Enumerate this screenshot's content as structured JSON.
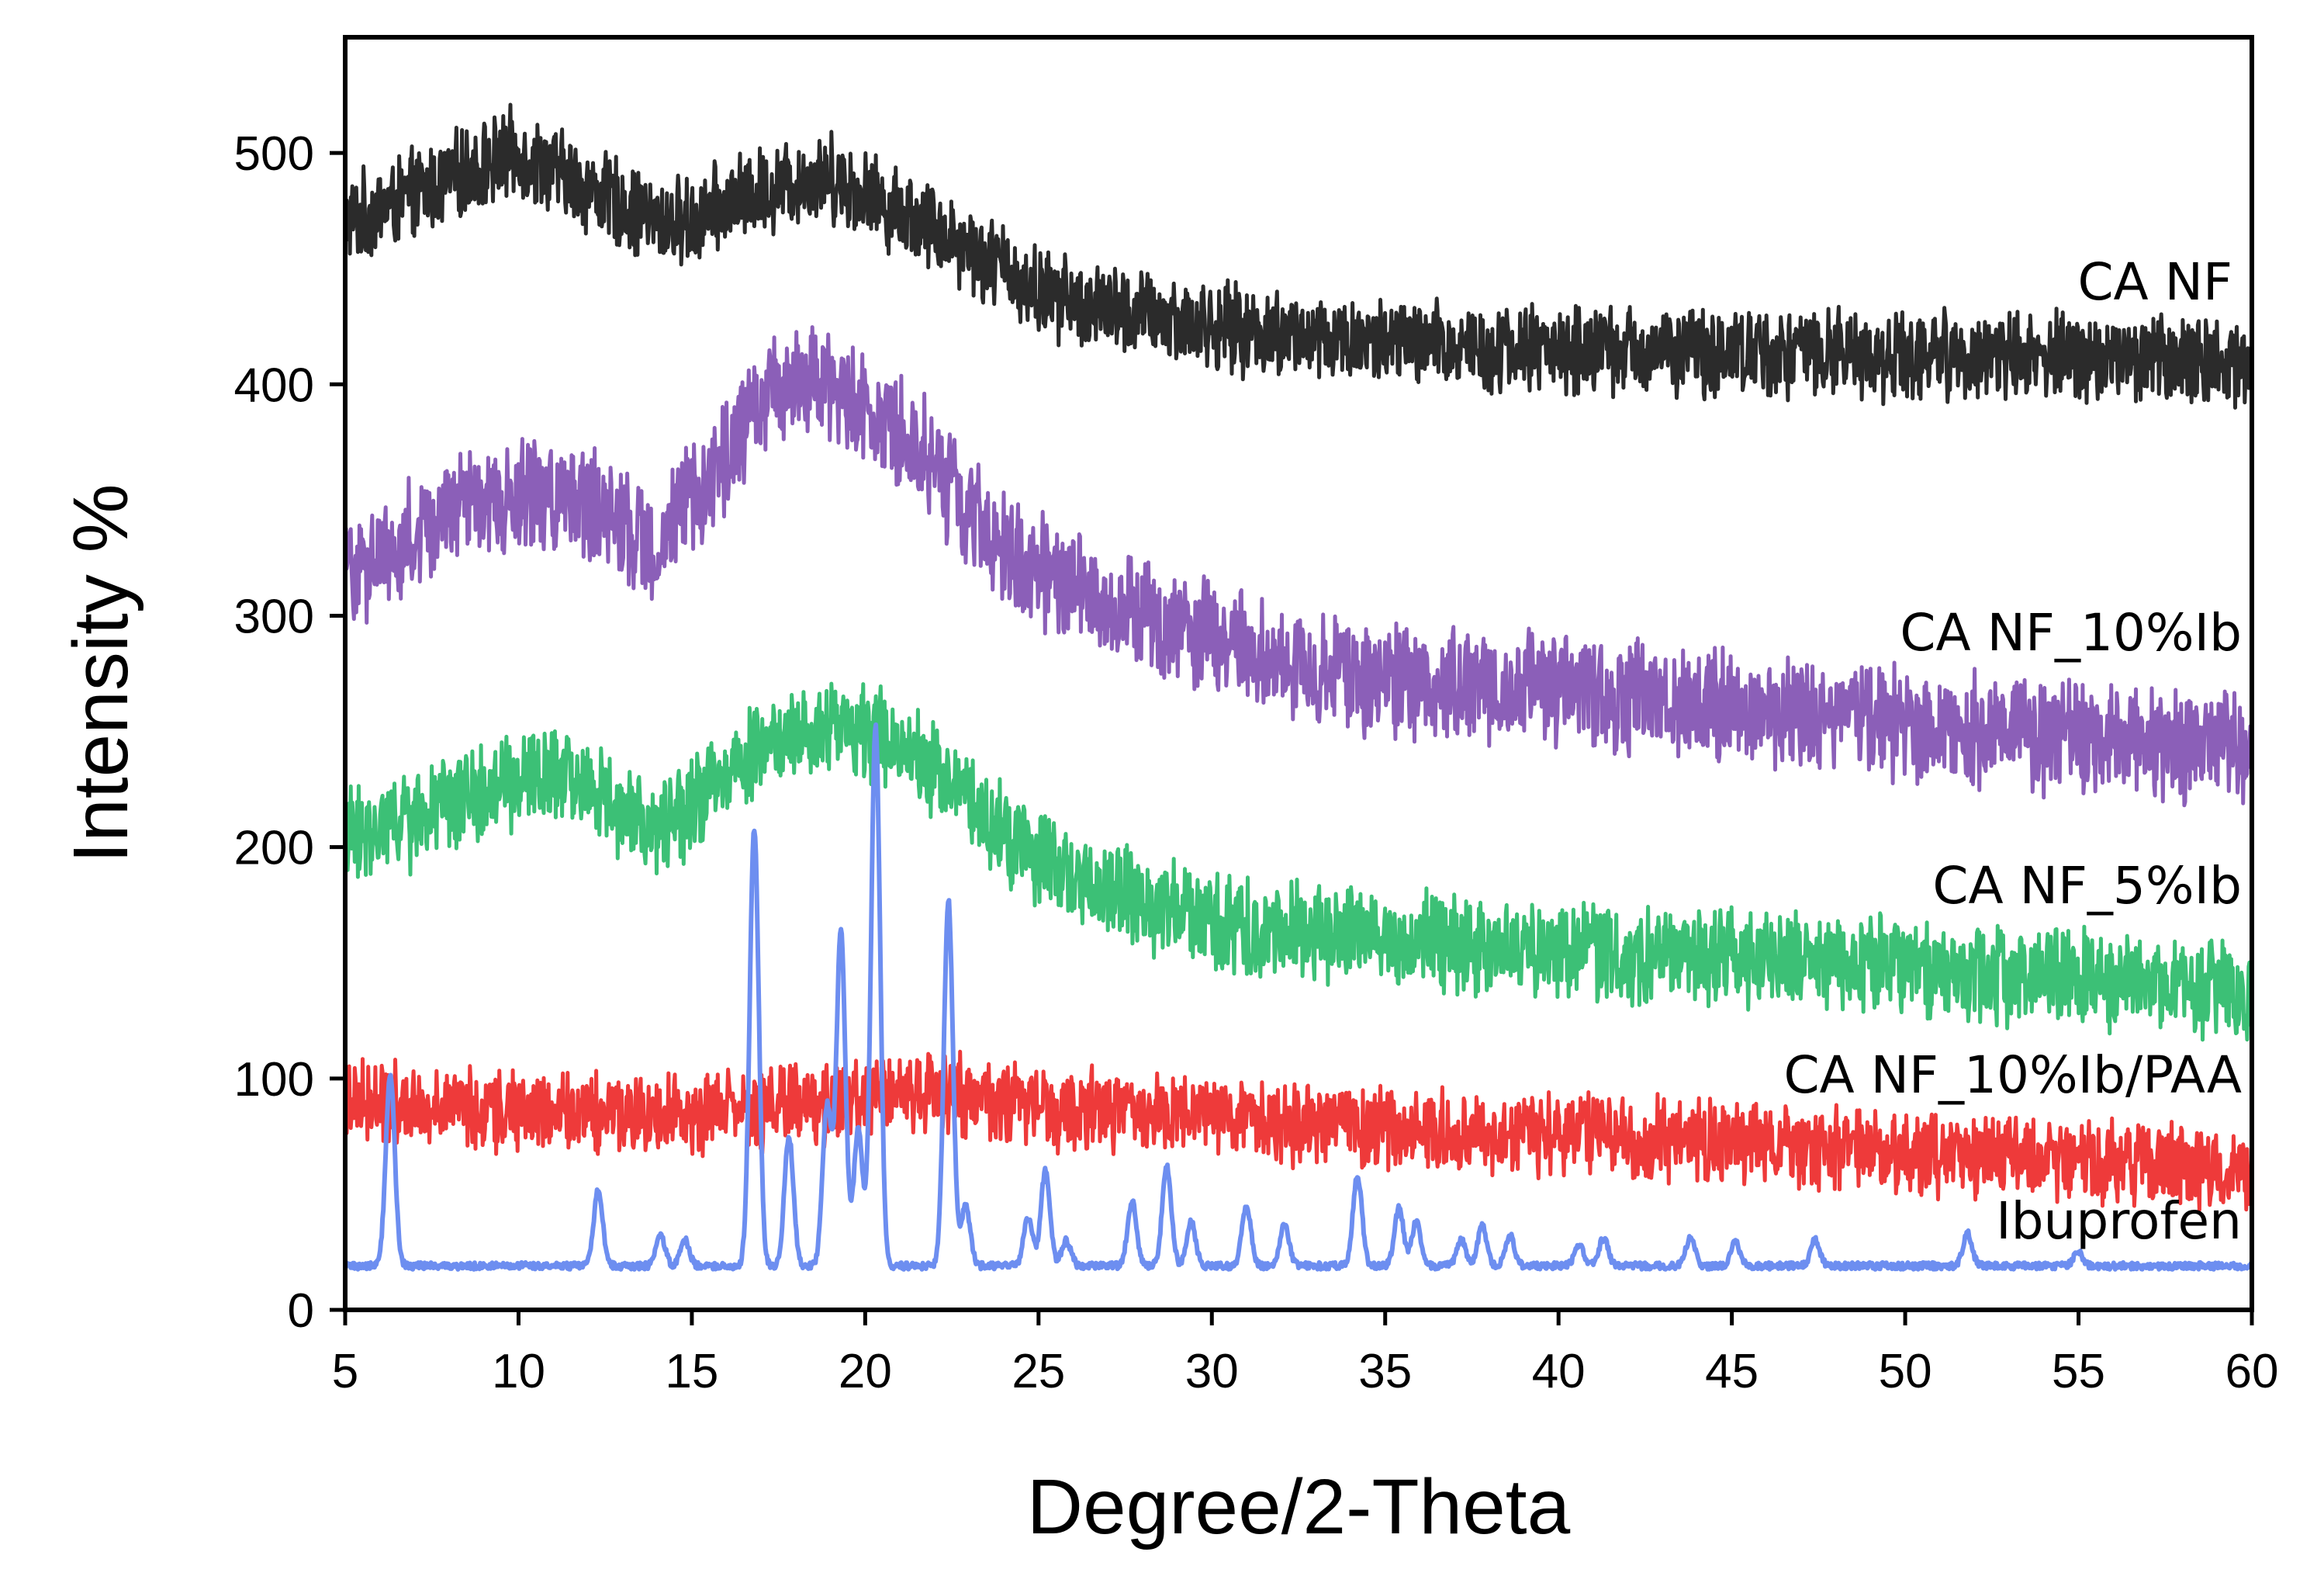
{
  "chart_data": {
    "type": "line",
    "title": "",
    "xlabel": "Degree/2-Theta",
    "ylabel": "Intensity %",
    "xlim": [
      5,
      60
    ],
    "ylim": [
      0,
      550
    ],
    "x_ticks": [
      5,
      10,
      15,
      20,
      25,
      30,
      35,
      40,
      45,
      50,
      55,
      60
    ],
    "y_ticks": [
      0,
      100,
      200,
      300,
      400,
      500
    ],
    "grid": false,
    "legend": "none (labels placed at right end of each curve)",
    "series": [
      {
        "name": "CA NF",
        "color": "#2b2b2b",
        "noise_amplitude": 22,
        "x": [
          5,
          7,
          9,
          10,
          12,
          14,
          15,
          16,
          18,
          19,
          20,
          22,
          24,
          25,
          27,
          30,
          33,
          36,
          40,
          45,
          50,
          55,
          60
        ],
        "y": [
          470,
          482,
          495,
          500,
          485,
          470,
          470,
          478,
          488,
          490,
          482,
          468,
          450,
          440,
          432,
          425,
          420,
          417,
          415,
          414,
          413,
          412,
          410
        ]
      },
      {
        "name": "CA NF_10%Ib",
        "color": "#8b5fb8",
        "noise_amplitude": 28,
        "x": [
          5,
          6,
          8,
          10,
          12,
          13,
          14,
          16,
          17,
          18,
          19,
          20,
          21,
          22,
          23,
          25,
          27,
          30,
          32,
          35,
          40,
          45,
          50,
          55,
          60
        ],
        "y": [
          318,
          325,
          345,
          352,
          348,
          338,
          330,
          370,
          392,
          402,
          400,
          390,
          380,
          365,
          345,
          320,
          305,
          290,
          280,
          272,
          268,
          260,
          252,
          247,
          243
        ]
      },
      {
        "name": "CA NF_5%Ib",
        "color": "#3cc076",
        "noise_amplitude": 24,
        "x": [
          5,
          7,
          9,
          11,
          12,
          13,
          14,
          15,
          16,
          17,
          18,
          19,
          20,
          21,
          22,
          23,
          24,
          26,
          28,
          30,
          35,
          40,
          45,
          50,
          55,
          60
        ],
        "y": [
          205,
          212,
          225,
          230,
          225,
          215,
          210,
          218,
          232,
          245,
          252,
          252,
          250,
          245,
          235,
          222,
          205,
          188,
          176,
          168,
          160,
          155,
          152,
          148,
          143,
          138
        ]
      },
      {
        "name": "CA NF_10%Ib/PAA",
        "color": "#ee3a3a",
        "noise_amplitude": 20,
        "x": [
          5,
          10,
          15,
          18,
          20,
          22,
          25,
          30,
          35,
          40,
          45,
          50,
          55,
          60
        ],
        "y": [
          92,
          86,
          85,
          88,
          93,
          95,
          88,
          82,
          78,
          76,
          72,
          68,
          64,
          60
        ]
      },
      {
        "name": "Ibuprofen",
        "color": "#6d8ef0",
        "baseline": 19,
        "peaks": [
          {
            "x": 6.3,
            "y": 102
          },
          {
            "x": 12.3,
            "y": 52
          },
          {
            "x": 14.1,
            "y": 32
          },
          {
            "x": 14.8,
            "y": 30
          },
          {
            "x": 16.8,
            "y": 208
          },
          {
            "x": 17.8,
            "y": 75
          },
          {
            "x": 18.9,
            "y": 88
          },
          {
            "x": 19.3,
            "y": 163
          },
          {
            "x": 19.8,
            "y": 78
          },
          {
            "x": 20.3,
            "y": 252
          },
          {
            "x": 22.4,
            "y": 177
          },
          {
            "x": 22.9,
            "y": 45
          },
          {
            "x": 24.7,
            "y": 40
          },
          {
            "x": 25.2,
            "y": 60
          },
          {
            "x": 25.8,
            "y": 30
          },
          {
            "x": 27.7,
            "y": 47
          },
          {
            "x": 28.7,
            "y": 62
          },
          {
            "x": 29.4,
            "y": 38
          },
          {
            "x": 31.0,
            "y": 45
          },
          {
            "x": 32.1,
            "y": 37
          },
          {
            "x": 34.2,
            "y": 58
          },
          {
            "x": 35.4,
            "y": 44
          },
          {
            "x": 35.9,
            "y": 38
          },
          {
            "x": 37.2,
            "y": 30
          },
          {
            "x": 37.8,
            "y": 36
          },
          {
            "x": 38.6,
            "y": 32
          },
          {
            "x": 40.6,
            "y": 28
          },
          {
            "x": 41.3,
            "y": 31
          },
          {
            "x": 43.8,
            "y": 31
          },
          {
            "x": 45.1,
            "y": 29
          },
          {
            "x": 47.4,
            "y": 30
          },
          {
            "x": 51.8,
            "y": 33
          },
          {
            "x": 55.0,
            "y": 25
          }
        ]
      }
    ]
  },
  "labels": {
    "ca_nf": "CA NF",
    "ca_nf_10ib": "CA NF_10%Ib",
    "ca_nf_5ib": "CA NF_5%Ib",
    "ca_nf_10ib_paa": "CA NF_10%Ib/PAA",
    "ibuprofen": "Ibuprofen"
  }
}
